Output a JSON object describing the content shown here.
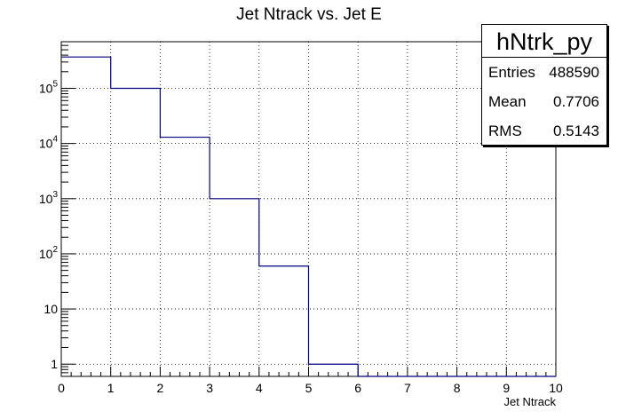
{
  "chart_data": {
    "type": "bar",
    "title": "Jet Ntrack vs. Jet E",
    "xlabel": "Jet Ntrack",
    "ylabel": "",
    "xlim": [
      0,
      10
    ],
    "ylim": [
      0.6,
      700000
    ],
    "yscale": "log",
    "grid": true,
    "bin_edges": [
      0,
      1,
      2,
      3,
      4,
      5,
      6,
      7,
      8,
      9,
      10
    ],
    "values": [
      370000,
      100000,
      13000,
      1000,
      60,
      1,
      0,
      0,
      0,
      0
    ],
    "line_color": "#000080",
    "x_ticks": [
      "0",
      "1",
      "2",
      "3",
      "4",
      "5",
      "6",
      "7",
      "8",
      "9",
      "10"
    ],
    "y_ticks": [
      {
        "value": 1,
        "base": "1",
        "exp": ""
      },
      {
        "value": 10,
        "base": "10",
        "exp": ""
      },
      {
        "value": 100,
        "base": "10",
        "exp": "2"
      },
      {
        "value": 1000,
        "base": "10",
        "exp": "3"
      },
      {
        "value": 10000,
        "base": "10",
        "exp": "4"
      },
      {
        "value": 100000,
        "base": "10",
        "exp": "5"
      }
    ]
  },
  "stats": {
    "name": "hNtrk_py",
    "entries_label": "Entries",
    "entries": "488590",
    "mean_label": "Mean",
    "mean": "0.7706",
    "rms_label": "RMS",
    "rms": "0.5143"
  }
}
